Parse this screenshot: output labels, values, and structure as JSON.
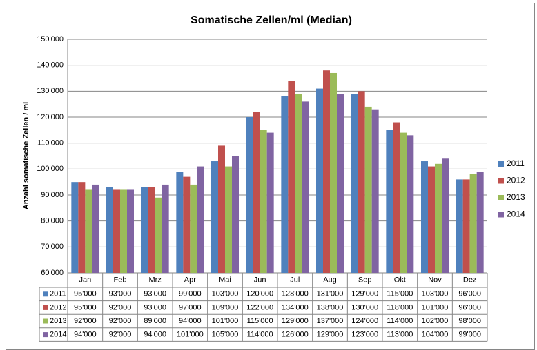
{
  "chart_data": {
    "type": "bar",
    "title": "Somatische Zellen/ml (Median)",
    "y_label": "Anzahl somatische Zellen / ml",
    "categories": [
      "Jan",
      "Feb",
      "Mrz",
      "Apr",
      "Mai",
      "Jun",
      "Jul",
      "Aug",
      "Sep",
      "Okt",
      "Nov",
      "Dez"
    ],
    "series": [
      {
        "name": "2011",
        "color": "#4f81bd",
        "values": [
          95000,
          93000,
          93000,
          99000,
          103000,
          120000,
          128000,
          131000,
          129000,
          115000,
          103000,
          96000
        ],
        "value_labels": [
          "95'000",
          "93'000",
          "93'000",
          "99'000",
          "103'000",
          "120'000",
          "128'000",
          "131'000",
          "129'000",
          "115'000",
          "103'000",
          "96'000"
        ]
      },
      {
        "name": "2012",
        "color": "#c0504d",
        "values": [
          95000,
          92000,
          93000,
          97000,
          109000,
          122000,
          134000,
          138000,
          130000,
          118000,
          101000,
          96000
        ],
        "value_labels": [
          "95'000",
          "92'000",
          "93'000",
          "97'000",
          "109'000",
          "122'000",
          "134'000",
          "138'000",
          "130'000",
          "118'000",
          "101'000",
          "96'000"
        ]
      },
      {
        "name": "2013",
        "color": "#9bbb59",
        "values": [
          92000,
          92000,
          89000,
          94000,
          101000,
          115000,
          129000,
          137000,
          124000,
          114000,
          102000,
          98000
        ],
        "value_labels": [
          "92'000",
          "92'000",
          "89'000",
          "94'000",
          "101'000",
          "115'000",
          "129'000",
          "137'000",
          "124'000",
          "114'000",
          "102'000",
          "98'000"
        ]
      },
      {
        "name": "2014",
        "color": "#8064a2",
        "values": [
          94000,
          92000,
          94000,
          101000,
          105000,
          114000,
          126000,
          129000,
          123000,
          113000,
          104000,
          99000
        ],
        "value_labels": [
          "94'000",
          "92'000",
          "94'000",
          "101'000",
          "105'000",
          "114'000",
          "126'000",
          "129'000",
          "123'000",
          "113'000",
          "104'000",
          "99'000"
        ]
      }
    ],
    "ylim": [
      60000,
      150000
    ],
    "yticks": [
      {
        "value": 60000,
        "label": "60'000"
      },
      {
        "value": 70000,
        "label": "70'000"
      },
      {
        "value": 80000,
        "label": "80'000"
      },
      {
        "value": 90000,
        "label": "90'000"
      },
      {
        "value": 100000,
        "label": "100'000"
      },
      {
        "value": 110000,
        "label": "110'000"
      },
      {
        "value": 120000,
        "label": "120'000"
      },
      {
        "value": 130000,
        "label": "130'000"
      },
      {
        "value": 140000,
        "label": "140'000"
      },
      {
        "value": 150000,
        "label": "150'000"
      }
    ],
    "grid": true,
    "legend": "right",
    "data_table": true
  }
}
